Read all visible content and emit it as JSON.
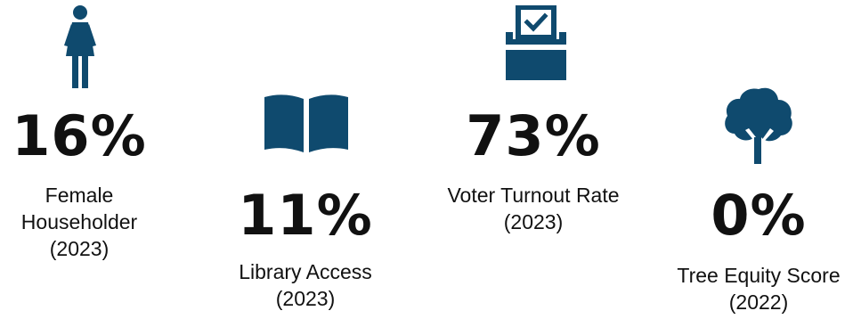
{
  "accent_color": "#0f4a6e",
  "stats": [
    {
      "icon": "female-person-icon",
      "value": "16%",
      "label_lines": [
        "Female",
        "Householder",
        "(2023)"
      ]
    },
    {
      "icon": "open-book-icon",
      "value": "11%",
      "label_lines": [
        "Library Access",
        "(2023)"
      ]
    },
    {
      "icon": "ballot-box-icon",
      "value": "73%",
      "label_lines": [
        "Voter Turnout Rate",
        "(2023)"
      ]
    },
    {
      "icon": "tree-icon",
      "value": "0%",
      "label_lines": [
        "Tree Equity Score",
        "(2022)"
      ]
    }
  ]
}
